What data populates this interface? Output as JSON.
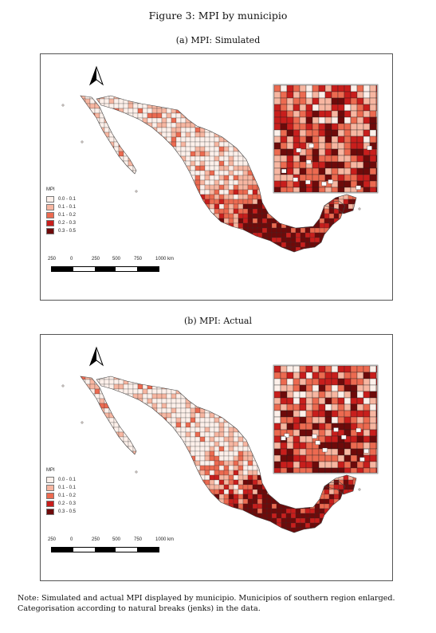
{
  "figure": {
    "title": "Figure 3: MPI by municipio",
    "panel_a_caption": "(a) MPI: Simulated",
    "panel_b_caption": "(b) MPI: Actual"
  },
  "legend": {
    "title": "MPI",
    "entries": [
      {
        "label": "0.0 - 0.1",
        "color": "#fdf0ea"
      },
      {
        "label": "0.1 - 0.1",
        "color": "#f7b6a1"
      },
      {
        "label": "0.1 - 0.2",
        "color": "#ec6a50"
      },
      {
        "label": "0.2 - 0.3",
        "color": "#c81e1c"
      },
      {
        "label": "0.3 - 0.5",
        "color": "#6e0a0a"
      }
    ]
  },
  "scale_bar": {
    "ticks": [
      "250",
      "0",
      "250",
      "500",
      "750",
      "1000 km"
    ]
  },
  "north_arrow": {
    "icon": "north-arrow-icon"
  },
  "note": "Note: Simulated and actual MPI displayed by municipio. Municipios of southern region enlarged. Categorisation according to natural breaks (jenks) in the data."
}
